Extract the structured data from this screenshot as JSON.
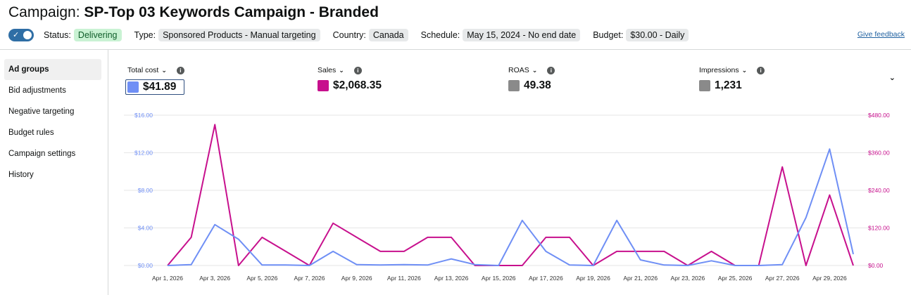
{
  "header": {
    "prefix": "Campaign:",
    "campaign_name": "SP-Top 03 Keywords Campaign - Branded",
    "feedback_link": "Give feedback"
  },
  "meta": {
    "status_label": "Status:",
    "status_value": "Delivering",
    "type_label": "Type:",
    "type_value": "Sponsored Products - Manual targeting",
    "country_label": "Country:",
    "country_value": "Canada",
    "schedule_label": "Schedule:",
    "schedule_value": "May 15, 2024 - No end date",
    "budget_label": "Budget:",
    "budget_value": "$30.00 - Daily",
    "toggle_on": true
  },
  "sidebar": {
    "items": [
      {
        "label": "Ad groups",
        "active": true
      },
      {
        "label": "Bid adjustments"
      },
      {
        "label": "Negative targeting"
      },
      {
        "label": "Budget rules"
      },
      {
        "label": "Campaign settings"
      },
      {
        "label": "History"
      }
    ]
  },
  "metrics": [
    {
      "label": "Total cost",
      "value": "$41.89",
      "color": "#6f8ff5"
    },
    {
      "label": "Sales",
      "value": "$2,068.35",
      "color": "#c7108d"
    },
    {
      "label": "ROAS",
      "value": "49.38",
      "color": "#8a8a8a"
    },
    {
      "label": "Impressions",
      "value": "1,231",
      "color": "#8a8a8a"
    }
  ],
  "icons": {
    "info": "info-icon",
    "chevron": "chevron-down-icon",
    "toggle_check": "check-icon"
  },
  "chart_data": {
    "type": "line",
    "x": [
      "Apr 1, 2026",
      "Apr 2, 2026",
      "Apr 3, 2026",
      "Apr 4, 2026",
      "Apr 5, 2026",
      "Apr 6, 2026",
      "Apr 7, 2026",
      "Apr 8, 2026",
      "Apr 9, 2026",
      "Apr 10, 2026",
      "Apr 11, 2026",
      "Apr 12, 2026",
      "Apr 13, 2026",
      "Apr 14, 2026",
      "Apr 15, 2026",
      "Apr 16, 2026",
      "Apr 17, 2026",
      "Apr 18, 2026",
      "Apr 19, 2026",
      "Apr 20, 2026",
      "Apr 21, 2026",
      "Apr 22, 2026",
      "Apr 23, 2026",
      "Apr 24, 2026",
      "Apr 25, 2026",
      "Apr 26, 2026",
      "Apr 27, 2026",
      "Apr 28, 2026",
      "Apr 29, 2026",
      "Apr 30, 2026"
    ],
    "x_tick_labels": [
      "Apr 1, 2026",
      "Apr 3, 2026",
      "Apr 5, 2026",
      "Apr 7, 2026",
      "Apr 9, 2026",
      "Apr 11, 2026",
      "Apr 13, 2026",
      "Apr 15, 2026",
      "Apr 17, 2026",
      "Apr 19, 2026",
      "Apr 21, 2026",
      "Apr 23, 2026",
      "Apr 25, 2026",
      "Apr 27, 2026",
      "Apr 29, 2026"
    ],
    "series": [
      {
        "name": "Total cost",
        "axis": "left",
        "color": "#6f8ff5",
        "values": [
          0,
          0.1,
          4.35,
          2.8,
          0.05,
          0.05,
          0,
          1.5,
          0.1,
          0.05,
          0.1,
          0.05,
          0.7,
          0.1,
          0,
          4.8,
          1.5,
          0.05,
          0,
          4.8,
          0.6,
          0.05,
          0,
          0.5,
          0,
          0,
          0.1,
          5.1,
          12.4,
          1.2
        ]
      },
      {
        "name": "Sales",
        "axis": "right",
        "color": "#c7108d",
        "values": [
          0,
          90,
          450,
          0,
          90,
          45,
          0,
          135,
          90,
          45,
          45,
          90,
          90,
          0,
          0,
          0,
          90,
          90,
          0,
          45,
          45,
          45,
          0,
          45,
          0,
          0,
          315,
          0,
          225,
          0
        ]
      }
    ],
    "y_left": {
      "ticks": [
        "$0.00",
        "$4.00",
        "$8.00",
        "$12.00",
        "$16.00"
      ],
      "range": [
        0,
        16
      ]
    },
    "y_right": {
      "ticks": [
        "$0.00",
        "$120.00",
        "$240.00",
        "$360.00",
        "$480.00"
      ],
      "range": [
        0,
        480
      ]
    },
    "grid": true
  }
}
